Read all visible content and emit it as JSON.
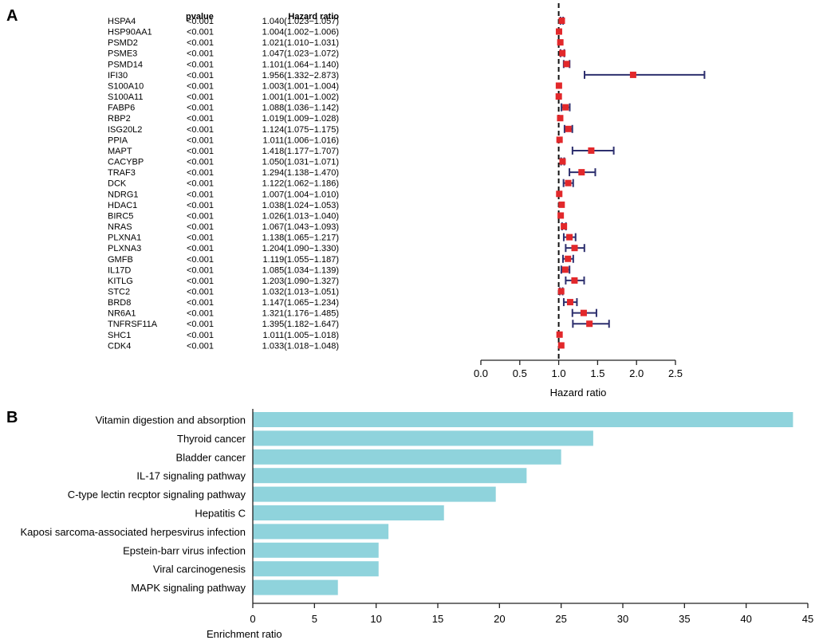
{
  "panels": {
    "a": {
      "label": "A"
    },
    "b": {
      "label": "B"
    }
  },
  "colors": {
    "marker": "#e2282b",
    "ci_line": "#2d2f6e",
    "bar": "#8fd3dc",
    "axis": "#222222"
  },
  "chart_data": [
    {
      "type": "forest",
      "title": "",
      "column_headers": {
        "pvalue": "pvalue",
        "hazard_ratio": "Hazard ratio"
      },
      "xlabel": "Hazard ratio",
      "xlim": [
        0,
        2.5
      ],
      "xticks": [
        "0.0",
        "0.5",
        "1.0",
        "1.5",
        "2.0",
        "2.5"
      ],
      "reference_line": 1.0,
      "rows": [
        {
          "gene": "HSPA4",
          "pvalue": "<0.001",
          "hr_text": "1.040(1.023−1.057)",
          "hr": 1.04,
          "lo": 1.023,
          "hi": 1.057
        },
        {
          "gene": "HSP90AA1",
          "pvalue": "<0.001",
          "hr_text": "1.004(1.002−1.006)",
          "hr": 1.004,
          "lo": 1.002,
          "hi": 1.006
        },
        {
          "gene": "PSMD2",
          "pvalue": "<0.001",
          "hr_text": "1.021(1.010−1.031)",
          "hr": 1.021,
          "lo": 1.01,
          "hi": 1.031
        },
        {
          "gene": "PSME3",
          "pvalue": "<0.001",
          "hr_text": "1.047(1.023−1.072)",
          "hr": 1.047,
          "lo": 1.023,
          "hi": 1.072
        },
        {
          "gene": "PSMD14",
          "pvalue": "<0.001",
          "hr_text": "1.101(1.064−1.140)",
          "hr": 1.101,
          "lo": 1.064,
          "hi": 1.14
        },
        {
          "gene": "IFI30",
          "pvalue": "<0.001",
          "hr_text": "1.956(1.332−2.873)",
          "hr": 1.956,
          "lo": 1.332,
          "hi": 2.873
        },
        {
          "gene": "S100A10",
          "pvalue": "<0.001",
          "hr_text": "1.003(1.001−1.004)",
          "hr": 1.003,
          "lo": 1.001,
          "hi": 1.004
        },
        {
          "gene": "S100A11",
          "pvalue": "<0.001",
          "hr_text": "1.001(1.001−1.002)",
          "hr": 1.001,
          "lo": 1.001,
          "hi": 1.002
        },
        {
          "gene": "FABP6",
          "pvalue": "<0.001",
          "hr_text": "1.088(1.036−1.142)",
          "hr": 1.088,
          "lo": 1.036,
          "hi": 1.142
        },
        {
          "gene": "RBP2",
          "pvalue": "<0.001",
          "hr_text": "1.019(1.009−1.028)",
          "hr": 1.019,
          "lo": 1.009,
          "hi": 1.028
        },
        {
          "gene": "ISG20L2",
          "pvalue": "<0.001",
          "hr_text": "1.124(1.075−1.175)",
          "hr": 1.124,
          "lo": 1.075,
          "hi": 1.175
        },
        {
          "gene": "PPIA",
          "pvalue": "<0.001",
          "hr_text": "1.011(1.006−1.016)",
          "hr": 1.011,
          "lo": 1.006,
          "hi": 1.016
        },
        {
          "gene": "MAPT",
          "pvalue": "<0.001",
          "hr_text": "1.418(1.177−1.707)",
          "hr": 1.418,
          "lo": 1.177,
          "hi": 1.707
        },
        {
          "gene": "CACYBP",
          "pvalue": "<0.001",
          "hr_text": "1.050(1.031−1.071)",
          "hr": 1.05,
          "lo": 1.031,
          "hi": 1.071
        },
        {
          "gene": "TRAF3",
          "pvalue": "<0.001",
          "hr_text": "1.294(1.138−1.470)",
          "hr": 1.294,
          "lo": 1.138,
          "hi": 1.47
        },
        {
          "gene": "DCK",
          "pvalue": "<0.001",
          "hr_text": "1.122(1.062−1.186)",
          "hr": 1.122,
          "lo": 1.062,
          "hi": 1.186
        },
        {
          "gene": "NDRG1",
          "pvalue": "<0.001",
          "hr_text": "1.007(1.004−1.010)",
          "hr": 1.007,
          "lo": 1.004,
          "hi": 1.01
        },
        {
          "gene": "HDAC1",
          "pvalue": "<0.001",
          "hr_text": "1.038(1.024−1.053)",
          "hr": 1.038,
          "lo": 1.024,
          "hi": 1.053
        },
        {
          "gene": "BIRC5",
          "pvalue": "<0.001",
          "hr_text": "1.026(1.013−1.040)",
          "hr": 1.026,
          "lo": 1.013,
          "hi": 1.04
        },
        {
          "gene": "NRAS",
          "pvalue": "<0.001",
          "hr_text": "1.067(1.043−1.093)",
          "hr": 1.067,
          "lo": 1.043,
          "hi": 1.093
        },
        {
          "gene": "PLXNA1",
          "pvalue": "<0.001",
          "hr_text": "1.138(1.065−1.217)",
          "hr": 1.138,
          "lo": 1.065,
          "hi": 1.217
        },
        {
          "gene": "PLXNA3",
          "pvalue": "<0.001",
          "hr_text": "1.204(1.090−1.330)",
          "hr": 1.204,
          "lo": 1.09,
          "hi": 1.33
        },
        {
          "gene": "GMFB",
          "pvalue": "<0.001",
          "hr_text": "1.119(1.055−1.187)",
          "hr": 1.119,
          "lo": 1.055,
          "hi": 1.187
        },
        {
          "gene": "IL17D",
          "pvalue": "<0.001",
          "hr_text": "1.085(1.034−1.139)",
          "hr": 1.085,
          "lo": 1.034,
          "hi": 1.139
        },
        {
          "gene": "KITLG",
          "pvalue": "<0.001",
          "hr_text": "1.203(1.090−1.327)",
          "hr": 1.203,
          "lo": 1.09,
          "hi": 1.327
        },
        {
          "gene": "STC2",
          "pvalue": "<0.001",
          "hr_text": "1.032(1.013−1.051)",
          "hr": 1.032,
          "lo": 1.013,
          "hi": 1.051
        },
        {
          "gene": "BRD8",
          "pvalue": "<0.001",
          "hr_text": "1.147(1.065−1.234)",
          "hr": 1.147,
          "lo": 1.065,
          "hi": 1.234
        },
        {
          "gene": "NR6A1",
          "pvalue": "<0.001",
          "hr_text": "1.321(1.176−1.485)",
          "hr": 1.321,
          "lo": 1.176,
          "hi": 1.485
        },
        {
          "gene": "TNFRSF11A",
          "pvalue": "<0.001",
          "hr_text": "1.395(1.182−1.647)",
          "hr": 1.395,
          "lo": 1.182,
          "hi": 1.647
        },
        {
          "gene": "SHC1",
          "pvalue": "<0.001",
          "hr_text": "1.011(1.005−1.018)",
          "hr": 1.011,
          "lo": 1.005,
          "hi": 1.018
        },
        {
          "gene": "CDK4",
          "pvalue": "<0.001",
          "hr_text": "1.033(1.018−1.048)",
          "hr": 1.033,
          "lo": 1.018,
          "hi": 1.048
        }
      ]
    },
    {
      "type": "bar",
      "orientation": "horizontal",
      "title": "",
      "xlabel": "Enrichment ratio",
      "ylabel": "",
      "xlim": [
        0,
        45
      ],
      "xticks": [
        "0",
        "5",
        "10",
        "15",
        "20",
        "25",
        "30",
        "35",
        "40",
        "45"
      ],
      "categories": [
        "Vitamin digestion and absorption",
        "Thyroid cancer",
        "Bladder cancer",
        "IL-17 signaling pathway",
        "C-type lectin recptor signaling pathway",
        "Hepatitis C",
        "Kaposi sarcoma-associated herpesvirus infection",
        "Epstein-barr virus infection",
        "Viral carcinogenesis",
        "MAPK signaling pathway"
      ],
      "values": [
        43.8,
        27.6,
        25.0,
        22.2,
        19.7,
        15.5,
        11.0,
        10.2,
        10.2,
        6.9
      ]
    }
  ]
}
